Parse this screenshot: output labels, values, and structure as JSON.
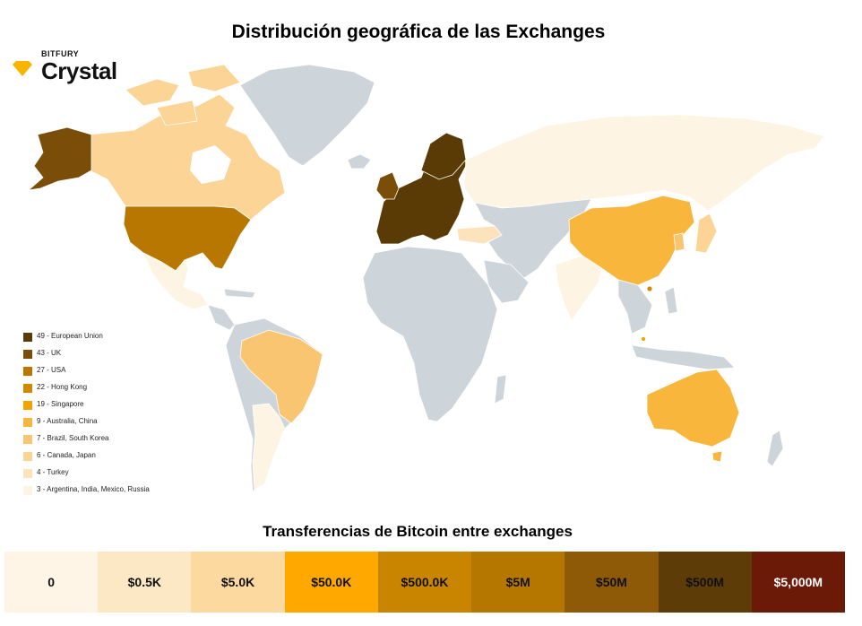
{
  "title": "Distribución geográfica de las Exchanges",
  "brand": {
    "small": "BITFURY",
    "name": "Crystal",
    "accent": "#f7b500"
  },
  "map_colors": {
    "background_land": "#cdd5da",
    "border": "#ffffff",
    "european_union": "#5a3b06",
    "uk": "#7a4e08",
    "usa": "#b87800",
    "hong_kong": "#d18a00",
    "singapore": "#f2a300",
    "australia_china": "#f8b63c",
    "brazil_south_korea": "#fac570",
    "canada_japan": "#fbd496",
    "turkey": "#fde3bb",
    "argentina_india_mexico_russia": "#fef4e4"
  },
  "legend": {
    "items": [
      {
        "label": "49 - European Union",
        "color": "#5a3b06"
      },
      {
        "label": "43 - UK",
        "color": "#7a4e08"
      },
      {
        "label": "27 - USA",
        "color": "#b87800"
      },
      {
        "label": "22 - Hong Kong",
        "color": "#d18a00"
      },
      {
        "label": "19 - Singapore",
        "color": "#f2a300"
      },
      {
        "label": "9 - Australia, China",
        "color": "#f8b63c"
      },
      {
        "label": "7 - Brazil, South Korea",
        "color": "#fac570"
      },
      {
        "label": "6 - Canada, Japan",
        "color": "#fbd496"
      },
      {
        "label": "4 - Turkey",
        "color": "#fde3bb"
      },
      {
        "label": "3 - Argentina, India, Mexico, Russia",
        "color": "#fef4e4"
      }
    ]
  },
  "scale": {
    "title": "Transferencias de Bitcoin entre exchanges",
    "bins": [
      {
        "label": "0",
        "color": "#fff5e6",
        "text_color": "#111111"
      },
      {
        "label": "$0.5K",
        "color": "#fde8c6",
        "text_color": "#111111"
      },
      {
        "label": "$5.0K",
        "color": "#fcd99f",
        "text_color": "#111111"
      },
      {
        "label": "$50.0K",
        "color": "#ffa800",
        "text_color": "#111111"
      },
      {
        "label": "$500.0K",
        "color": "#c98400",
        "text_color": "#111111"
      },
      {
        "label": "$5M",
        "color": "#b57700",
        "text_color": "#111111"
      },
      {
        "label": "$50M",
        "color": "#8e5a08",
        "text_color": "#111111"
      },
      {
        "label": "$500M",
        "color": "#5e3c08",
        "text_color": "#111111"
      },
      {
        "label": "$5,000M",
        "color": "#6b1a07",
        "text_color": "#ffffff"
      }
    ]
  }
}
